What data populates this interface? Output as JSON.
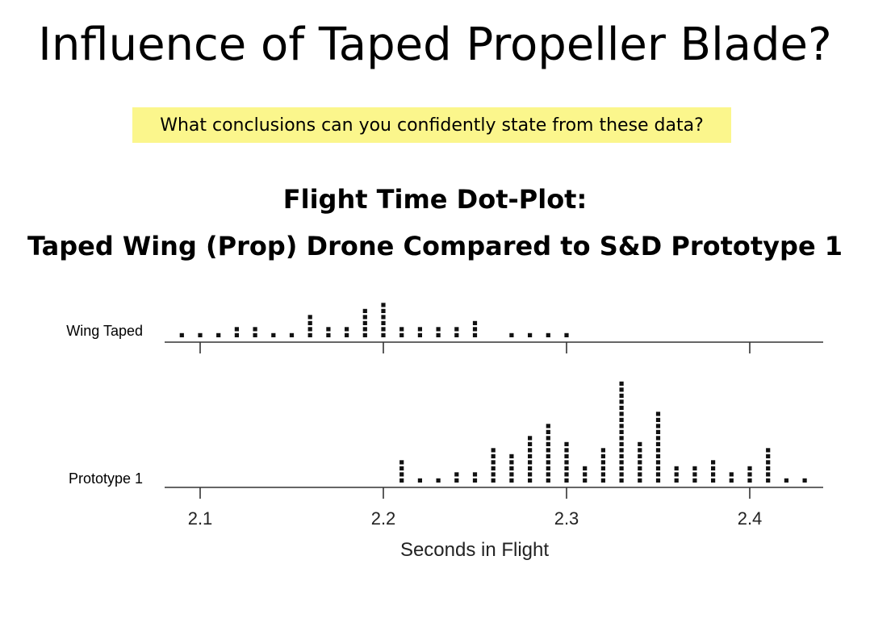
{
  "slide": {
    "title": "Influence of Taped Propeller Blade?",
    "prompt": "What conclusions can you confidently state from these data?",
    "prompt_color": "#fbf68c"
  },
  "chart_data": {
    "type": "scatter",
    "title_line1": "Flight Time Dot-Plot:",
    "title_line2": "Taped Wing (Prop) Drone Compared to S&D Prototype 1",
    "xlabel": "Seconds in Flight",
    "xlim": [
      2.08,
      2.44
    ],
    "xticks": [
      2.1,
      2.2,
      2.3,
      2.4
    ],
    "tick_labels": [
      "2.1",
      "2.2",
      "2.3",
      "2.4"
    ],
    "grid": false,
    "series": [
      {
        "name": "Wing Taped",
        "points": [
          {
            "x": 2.09,
            "count": 1
          },
          {
            "x": 2.1,
            "count": 1
          },
          {
            "x": 2.11,
            "count": 1
          },
          {
            "x": 2.12,
            "count": 2
          },
          {
            "x": 2.13,
            "count": 2
          },
          {
            "x": 2.14,
            "count": 1
          },
          {
            "x": 2.15,
            "count": 1
          },
          {
            "x": 2.16,
            "count": 4
          },
          {
            "x": 2.17,
            "count": 2
          },
          {
            "x": 2.18,
            "count": 2
          },
          {
            "x": 2.19,
            "count": 5
          },
          {
            "x": 2.2,
            "count": 6
          },
          {
            "x": 2.21,
            "count": 2
          },
          {
            "x": 2.22,
            "count": 2
          },
          {
            "x": 2.23,
            "count": 2
          },
          {
            "x": 2.24,
            "count": 2
          },
          {
            "x": 2.25,
            "count": 3
          },
          {
            "x": 2.27,
            "count": 1
          },
          {
            "x": 2.28,
            "count": 1
          },
          {
            "x": 2.29,
            "count": 1
          },
          {
            "x": 2.3,
            "count": 1
          }
        ]
      },
      {
        "name": "Prototype 1",
        "points": [
          {
            "x": 2.21,
            "count": 4
          },
          {
            "x": 2.22,
            "count": 1
          },
          {
            "x": 2.23,
            "count": 1
          },
          {
            "x": 2.24,
            "count": 2
          },
          {
            "x": 2.25,
            "count": 2
          },
          {
            "x": 2.26,
            "count": 6
          },
          {
            "x": 2.27,
            "count": 5
          },
          {
            "x": 2.28,
            "count": 8
          },
          {
            "x": 2.29,
            "count": 10
          },
          {
            "x": 2.3,
            "count": 7
          },
          {
            "x": 2.31,
            "count": 3
          },
          {
            "x": 2.32,
            "count": 6
          },
          {
            "x": 2.33,
            "count": 17
          },
          {
            "x": 2.34,
            "count": 7
          },
          {
            "x": 2.35,
            "count": 12
          },
          {
            "x": 2.36,
            "count": 3
          },
          {
            "x": 2.37,
            "count": 3
          },
          {
            "x": 2.38,
            "count": 4
          },
          {
            "x": 2.39,
            "count": 2
          },
          {
            "x": 2.4,
            "count": 3
          },
          {
            "x": 2.41,
            "count": 6
          },
          {
            "x": 2.42,
            "count": 1
          },
          {
            "x": 2.43,
            "count": 1
          }
        ]
      }
    ]
  }
}
